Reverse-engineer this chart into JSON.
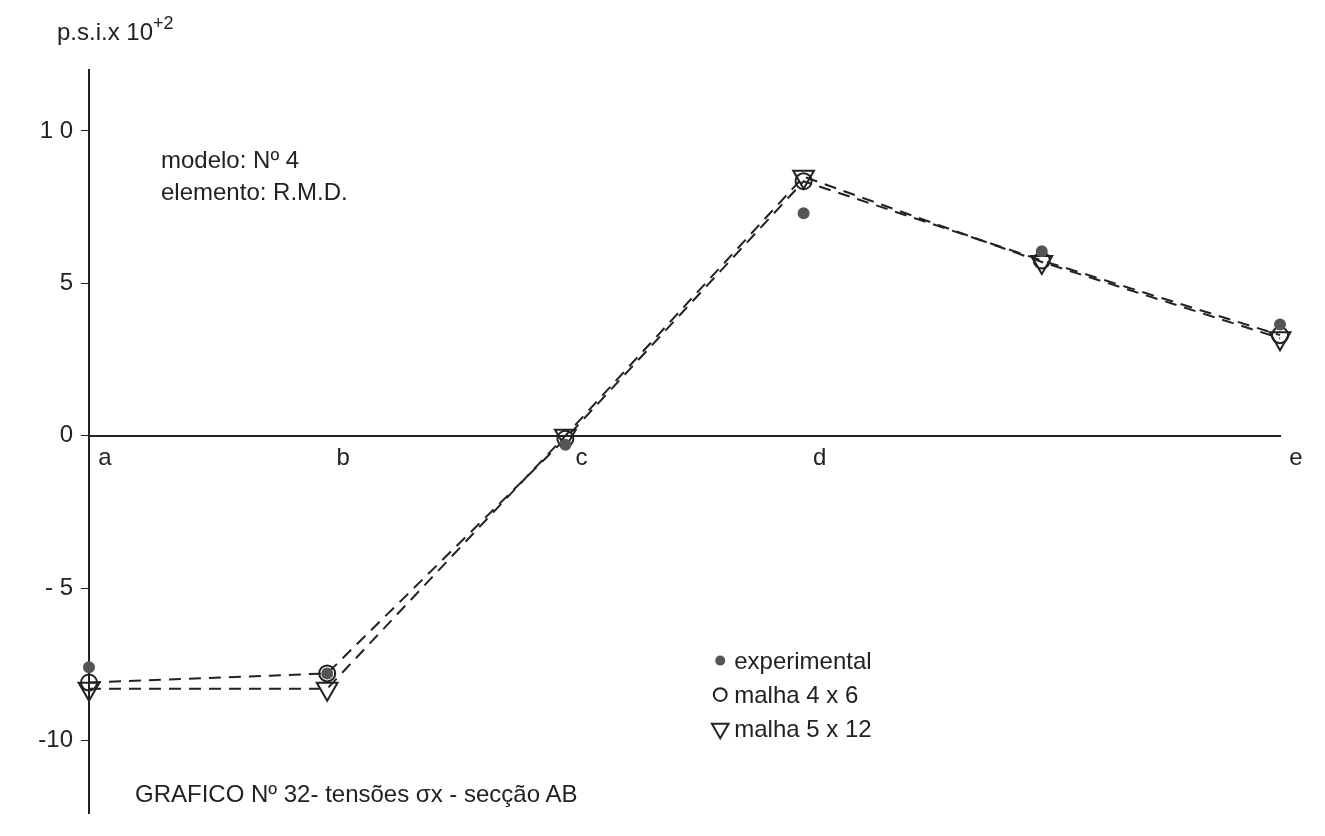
{
  "chart_data": {
    "type": "line",
    "title": "GRAFICO Nº 32- tensões σx - secção AB",
    "ylabel": "p.s.i.x 10$^{+2}$",
    "annotations": [
      "modelo: Nº 4",
      "elemento: R.M.D."
    ],
    "categories": [
      "a",
      "b",
      "c",
      "d",
      null,
      "e"
    ],
    "series": [
      {
        "name": "experimental",
        "type": "scatter",
        "color": "#555555",
        "marker": "circle",
        "values": [
          -7.6,
          -7.8,
          -0.3,
          7.3,
          6.05,
          3.65
        ]
      },
      {
        "name": "malha 4 x 6",
        "type": "line",
        "color": "#222222",
        "marker": "circle",
        "line_style": "dashed",
        "values": [
          -8.1,
          -7.8,
          -0.1,
          8.35,
          5.75,
          3.3
        ]
      },
      {
        "name": "malha 5 x 12",
        "type": "line",
        "color": "#222222",
        "marker": "triangle",
        "line_style": "dashed",
        "values": [
          -8.3,
          -8.3,
          0,
          8.5,
          5.7,
          3.2
        ]
      }
    ],
    "ylim": [
      -12.4,
      12
    ],
    "yticks": [
      {
        "value": -10,
        "label": "-10"
      },
      {
        "value": -5,
        "label": "- 5"
      },
      0,
      5,
      {
        "value": 10,
        "label": "1 0"
      }
    ],
    "grid": false,
    "legend": "bottom right"
  }
}
